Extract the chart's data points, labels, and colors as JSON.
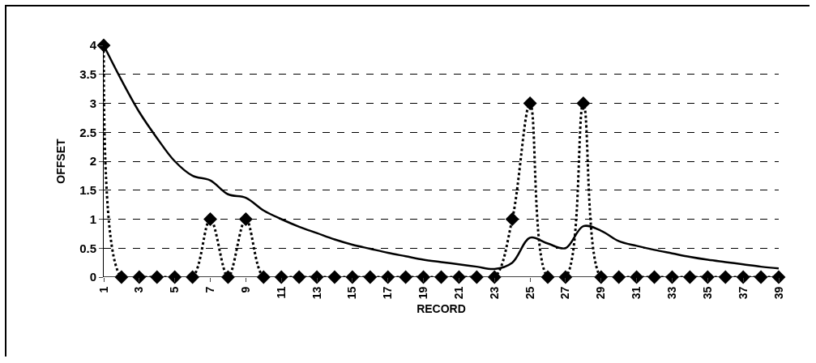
{
  "chart_data": {
    "type": "line",
    "xlabel": "RECORD",
    "ylabel": "OFFSET",
    "categories": [
      "1",
      null,
      "3",
      null,
      "5",
      null,
      "7",
      null,
      "9",
      null,
      "11",
      null,
      "13",
      null,
      "15",
      null,
      "17",
      null,
      "19",
      null,
      "21",
      null,
      "23",
      null,
      "25",
      null,
      "27",
      null,
      "29",
      null,
      "31",
      null,
      "33",
      null,
      "35",
      null,
      "37",
      null,
      "39"
    ],
    "series": [
      {
        "color": "#000000",
        "marker": "diamond",
        "line_style": "dotted",
        "values": [
          4,
          0,
          0,
          0,
          0,
          0,
          1,
          0,
          1,
          0,
          0,
          0,
          0,
          0,
          0,
          0,
          0,
          0,
          0,
          0,
          0,
          0,
          0,
          1,
          3,
          0,
          0,
          3,
          0,
          0,
          0,
          0,
          0,
          0,
          0,
          0,
          0,
          0,
          0
        ]
      },
      {
        "color": "#000000",
        "marker": "none",
        "line_style": "solid",
        "values": [
          4,
          3.4,
          2.85,
          2.4,
          2.0,
          1.75,
          1.67,
          1.43,
          1.37,
          1.15,
          1.0,
          0.87,
          0.76,
          0.65,
          0.56,
          0.49,
          0.42,
          0.36,
          0.3,
          0.26,
          0.22,
          0.18,
          0.14,
          0.25,
          0.68,
          0.58,
          0.5,
          0.88,
          0.8,
          0.62,
          0.54,
          0.47,
          0.41,
          0.35,
          0.3,
          0.26,
          0.22,
          0.18,
          0.15
        ]
      }
    ],
    "ylim": [
      0,
      4
    ],
    "yticks": [
      0,
      0.5,
      1,
      1.5,
      2,
      2.5,
      3,
      3.5,
      4
    ],
    "grid": "y"
  }
}
